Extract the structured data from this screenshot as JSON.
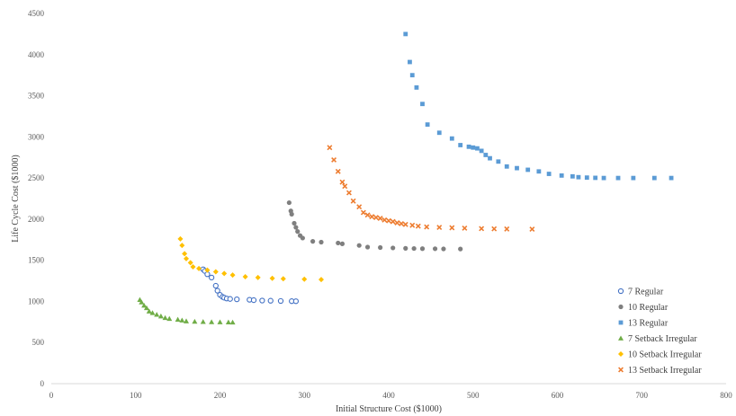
{
  "chart_data": {
    "type": "scatter",
    "xlabel": "Initial Structure Cost ($1000)",
    "ylabel": "Life Cycle Cost ($1000)",
    "xlim": [
      0,
      800
    ],
    "ylim": [
      0,
      4500
    ],
    "xticks": [
      "0",
      "100",
      "200",
      "300",
      "400",
      "500",
      "600",
      "700",
      "800"
    ],
    "yticks": [
      "0",
      "500",
      "1000",
      "1500",
      "2000",
      "2500",
      "3000",
      "3500",
      "4000",
      "4500"
    ],
    "grid": false,
    "legend_position": "bottom-right",
    "series": [
      {
        "name": "7 Regular",
        "marker": "open-circle",
        "color": "#4472C4",
        "points": [
          [
            180,
            1390
          ],
          [
            182,
            1370
          ],
          [
            185,
            1330
          ],
          [
            190,
            1290
          ],
          [
            195,
            1190
          ],
          [
            197,
            1130
          ],
          [
            200,
            1080
          ],
          [
            203,
            1055
          ],
          [
            205,
            1045
          ],
          [
            208,
            1035
          ],
          [
            212,
            1030
          ],
          [
            220,
            1025
          ],
          [
            235,
            1020
          ],
          [
            240,
            1015
          ],
          [
            250,
            1010
          ],
          [
            260,
            1008
          ],
          [
            272,
            1005
          ],
          [
            285,
            1003
          ],
          [
            290,
            1002
          ]
        ]
      },
      {
        "name": "10  Regular",
        "marker": "circle",
        "color": "#7F7F7F",
        "points": [
          [
            282,
            2200
          ],
          [
            284,
            2100
          ],
          [
            285,
            2060
          ],
          [
            288,
            1950
          ],
          [
            290,
            1900
          ],
          [
            292,
            1850
          ],
          [
            295,
            1800
          ],
          [
            298,
            1770
          ],
          [
            310,
            1730
          ],
          [
            320,
            1720
          ],
          [
            340,
            1710
          ],
          [
            345,
            1700
          ],
          [
            365,
            1680
          ],
          [
            375,
            1660
          ],
          [
            390,
            1655
          ],
          [
            405,
            1650
          ],
          [
            420,
            1645
          ],
          [
            430,
            1643
          ],
          [
            440,
            1641
          ],
          [
            455,
            1640
          ],
          [
            465,
            1638
          ],
          [
            485,
            1637
          ]
        ]
      },
      {
        "name": "13 Regular",
        "marker": "square",
        "color": "#5B9BD5",
        "points": [
          [
            420,
            4250
          ],
          [
            425,
            3910
          ],
          [
            428,
            3750
          ],
          [
            433,
            3600
          ],
          [
            440,
            3400
          ],
          [
            446,
            3150
          ],
          [
            460,
            3050
          ],
          [
            475,
            2980
          ],
          [
            485,
            2900
          ],
          [
            495,
            2880
          ],
          [
            500,
            2870
          ],
          [
            505,
            2860
          ],
          [
            510,
            2830
          ],
          [
            515,
            2780
          ],
          [
            520,
            2740
          ],
          [
            530,
            2700
          ],
          [
            540,
            2640
          ],
          [
            552,
            2620
          ],
          [
            565,
            2600
          ],
          [
            578,
            2580
          ],
          [
            590,
            2550
          ],
          [
            605,
            2530
          ],
          [
            618,
            2520
          ],
          [
            625,
            2510
          ],
          [
            635,
            2505
          ],
          [
            645,
            2502
          ],
          [
            655,
            2500
          ],
          [
            672,
            2500
          ],
          [
            690,
            2500
          ],
          [
            715,
            2500
          ],
          [
            735,
            2500
          ]
        ]
      },
      {
        "name": "7 Setback Irregular",
        "marker": "triangle",
        "color": "#70AD47",
        "points": [
          [
            105,
            1020
          ],
          [
            107,
            990
          ],
          [
            110,
            950
          ],
          [
            113,
            920
          ],
          [
            116,
            880
          ],
          [
            120,
            860
          ],
          [
            125,
            840
          ],
          [
            130,
            820
          ],
          [
            135,
            800
          ],
          [
            140,
            790
          ],
          [
            150,
            780
          ],
          [
            155,
            770
          ],
          [
            160,
            760
          ],
          [
            170,
            755
          ],
          [
            180,
            752
          ],
          [
            190,
            750
          ],
          [
            200,
            748
          ],
          [
            210,
            747
          ],
          [
            215,
            746
          ]
        ]
      },
      {
        "name": "10 Setback Irregular",
        "marker": "diamond",
        "color": "#FFC000",
        "points": [
          [
            153,
            1760
          ],
          [
            155,
            1680
          ],
          [
            158,
            1580
          ],
          [
            160,
            1520
          ],
          [
            165,
            1470
          ],
          [
            168,
            1420
          ],
          [
            175,
            1400
          ],
          [
            185,
            1380
          ],
          [
            195,
            1360
          ],
          [
            205,
            1340
          ],
          [
            215,
            1320
          ],
          [
            230,
            1300
          ],
          [
            245,
            1290
          ],
          [
            262,
            1280
          ],
          [
            275,
            1275
          ],
          [
            300,
            1270
          ],
          [
            320,
            1265
          ]
        ]
      },
      {
        "name": "13 Setback Irregular",
        "marker": "x",
        "color": "#ED7D31",
        "points": [
          [
            330,
            2870
          ],
          [
            335,
            2720
          ],
          [
            340,
            2580
          ],
          [
            345,
            2450
          ],
          [
            348,
            2400
          ],
          [
            353,
            2320
          ],
          [
            358,
            2220
          ],
          [
            365,
            2150
          ],
          [
            370,
            2080
          ],
          [
            375,
            2050
          ],
          [
            380,
            2030
          ],
          [
            385,
            2020
          ],
          [
            390,
            2010
          ],
          [
            395,
            1990
          ],
          [
            400,
            1980
          ],
          [
            405,
            1970
          ],
          [
            410,
            1955
          ],
          [
            415,
            1945
          ],
          [
            420,
            1935
          ],
          [
            428,
            1925
          ],
          [
            435,
            1915
          ],
          [
            445,
            1905
          ],
          [
            460,
            1900
          ],
          [
            475,
            1895
          ],
          [
            490,
            1890
          ],
          [
            510,
            1885
          ],
          [
            525,
            1882
          ],
          [
            540,
            1880
          ],
          [
            570,
            1878
          ]
        ]
      }
    ]
  }
}
